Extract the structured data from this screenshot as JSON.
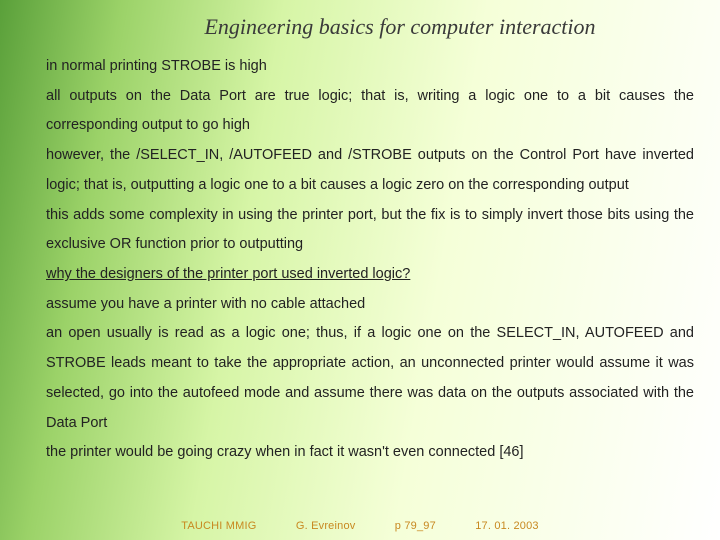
{
  "title": "Engineering basics for computer interaction",
  "paragraphs": [
    "in normal printing STROBE is high",
    "all outputs on the Data Port are true logic; that is, writing a logic one to a bit causes the corresponding output to go high",
    "however, the /SELECT_IN, /AUTOFEED and /STROBE outputs on the Control Port have inverted logic; that is, outputting a logic one to a bit causes a logic zero on the corresponding output",
    "this adds some complexity in using the printer port, but the fix is to simply invert those bits using the exclusive OR function prior to outputting",
    "",
    "assume you have a printer with no cable attached",
    "an open usually is read as a logic one; thus, if a logic one on the SELECT_IN, AUTOFEED and STROBE leads meant to take the appropriate action, an unconnected printer would assume it was selected, go into the autofeed mode and assume there was data on the outputs associated with the Data Port",
    "the printer would be going crazy when in fact it wasn't even connected [46]"
  ],
  "underlined_line": "why the designers of the printer port used inverted logic?",
  "footer": {
    "org": "TAUCHI MMIG",
    "author": "G. Evreinov",
    "page": "p 79_97",
    "date": "17. 01. 2003"
  },
  "colors": {
    "title_color": "#3a3a3a",
    "body_color": "#222222",
    "footer_color": "#c88820",
    "bg_gradient_start": "#5aa03a",
    "bg_gradient_end": "#ffffff"
  },
  "fonts": {
    "title_font": "Georgia, serif",
    "title_style": "italic",
    "title_size_pt": 17,
    "body_font": "Arial, sans-serif",
    "body_size_pt": 11,
    "footer_size_pt": 8
  }
}
